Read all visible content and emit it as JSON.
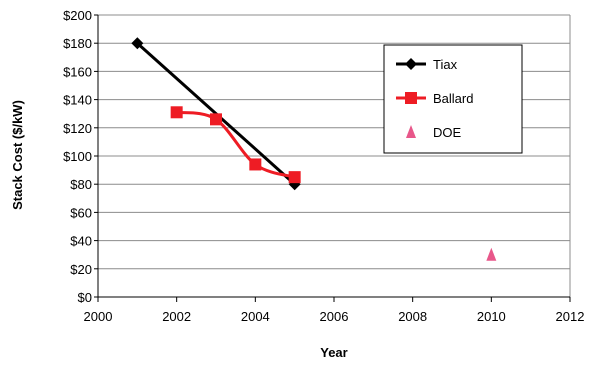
{
  "chart_data": {
    "type": "line",
    "title": "",
    "xlabel": "Year",
    "ylabel": "Stack Cost ($/kW)",
    "xlim": [
      2000,
      2012
    ],
    "ylim": [
      0,
      200
    ],
    "x_ticks": [
      2000,
      2002,
      2004,
      2006,
      2008,
      2010,
      2012
    ],
    "x_tick_labels": [
      "2000",
      "2002",
      "2004",
      "2006",
      "2008",
      "2010",
      "2012"
    ],
    "y_ticks": [
      0,
      20,
      40,
      60,
      80,
      100,
      120,
      140,
      160,
      180,
      200
    ],
    "y_tick_labels": [
      "$0",
      "$20",
      "$40",
      "$60",
      "$80",
      "$100",
      "$120",
      "$140",
      "$160",
      "$180",
      "$200"
    ],
    "grid": "horizontal",
    "legend": {
      "placement": "top-right",
      "entries": [
        "Tiax",
        "Ballard",
        "DOE"
      ]
    },
    "series": [
      {
        "name": "Tiax",
        "style": "line",
        "marker": "diamond",
        "color": "#000000",
        "x": [
          2001,
          2005
        ],
        "y": [
          180,
          80
        ]
      },
      {
        "name": "Ballard",
        "style": "smooth-line",
        "marker": "square",
        "color": "#ee1c24",
        "x": [
          2002,
          2003,
          2004,
          2005
        ],
        "y": [
          131,
          126,
          94,
          85
        ]
      },
      {
        "name": "DOE",
        "style": "marker-only",
        "marker": "triangle",
        "color": "#e8578a",
        "x": [
          2010
        ],
        "y": [
          30
        ]
      }
    ]
  }
}
